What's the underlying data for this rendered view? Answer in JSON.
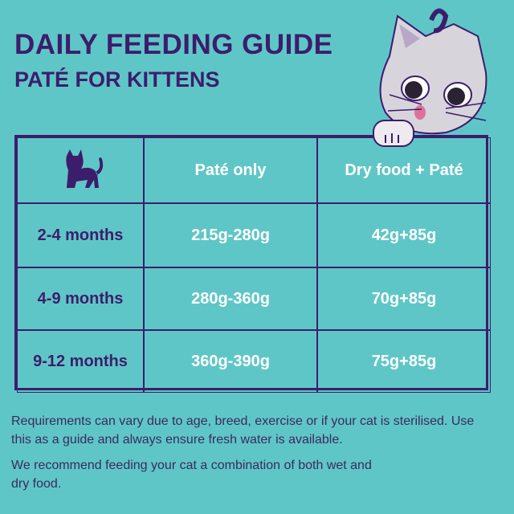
{
  "header": {
    "title": "DAILY FEEDING GUIDE",
    "subtitle": "PATÉ FOR KITTENS"
  },
  "table": {
    "columns": [
      "Paté only",
      "Dry food + Paté"
    ],
    "rows": [
      [
        "2-4 months",
        "215g-280g",
        "42g+85g"
      ],
      [
        "4-9 months",
        "280g-360g",
        "70g+85g"
      ],
      [
        "9-12 months",
        "360g-390g",
        "75g+85g"
      ]
    ]
  },
  "notes": [
    "Requirements can vary due to age, breed, exercise or if your cat is sterilised. Use this as a guide and always ensure fresh water is available.",
    "We recommend feeding your cat a combination of both wet and dry food."
  ]
}
